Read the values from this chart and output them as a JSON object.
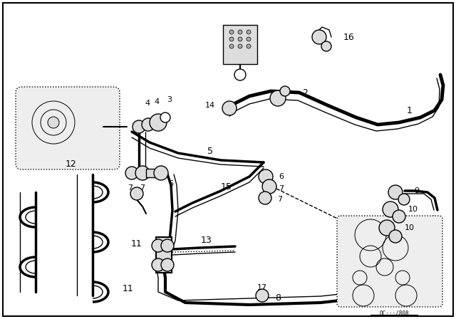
{
  "bg_color": "#ffffff",
  "line_color": "#000000",
  "lw_pipe": 2.5,
  "lw_thin": 1.0,
  "lw_border": 1.5,
  "figsize": [
    6.4,
    4.48
  ],
  "dpi": 100,
  "watermark": "OC···/808"
}
